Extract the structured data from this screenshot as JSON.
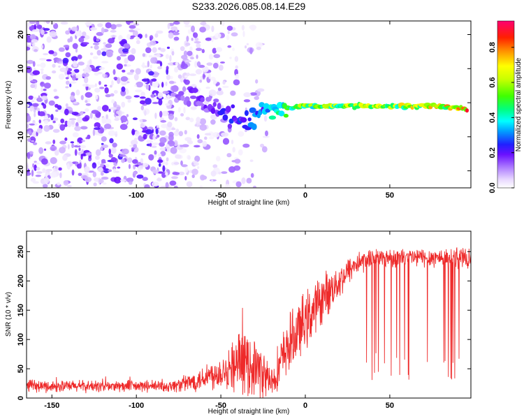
{
  "chart_data": [
    {
      "type": "heatmap",
      "title": "S233.2026.085.08.14.E29",
      "xlabel": "Height of straight line (km)",
      "ylabel": "Frequency (Hz)",
      "xlim": [
        -165,
        98
      ],
      "ylim": [
        -25,
        24
      ],
      "x_ticks": [
        -150,
        -100,
        -50,
        0,
        50
      ],
      "x_tick_labels": [
        "-150",
        "-100",
        "-50",
        "0",
        "50"
      ],
      "y_ticks": [
        20,
        10,
        0,
        -10,
        -20
      ],
      "y_tick_labels": [
        "20",
        "10",
        "0",
        "-10",
        "-20"
      ],
      "colorbar": {
        "label": "Normalized spectral amplitude",
        "range": [
          0,
          0.95
        ],
        "ticks": [
          0.0,
          0.2,
          0.4,
          0.6,
          0.8
        ],
        "tick_labels": [
          "0.0",
          "0.2",
          "0.4",
          "0.6",
          "0.8"
        ]
      },
      "carrier_line": {
        "description": "frequency of strongest spectral component vs height",
        "x": [
          -75,
          -65,
          -55,
          -45,
          -35,
          -25,
          -15,
          0,
          20,
          40,
          60,
          80,
          95
        ],
        "frequency_hz": [
          3,
          1,
          -1,
          -4,
          -5,
          -2,
          -2,
          -1,
          -1,
          -1,
          -1,
          -1,
          -2
        ],
        "amplitude": [
          0.15,
          0.2,
          0.2,
          0.25,
          0.3,
          0.35,
          0.5,
          0.6,
          0.65,
          0.7,
          0.7,
          0.75,
          0.95
        ]
      }
    },
    {
      "type": "line",
      "xlabel": "Height of straight line (km)",
      "ylabel": "SNR (10 * v/v)",
      "xlim": [
        -165,
        98
      ],
      "ylim": [
        0,
        285
      ],
      "x_ticks": [
        -150,
        -100,
        -50,
        0,
        50
      ],
      "x_tick_labels": [
        "-150",
        "-100",
        "-50",
        "0",
        "50"
      ],
      "y_ticks": [
        0,
        50,
        100,
        150,
        200,
        250
      ],
      "y_tick_labels": [
        "0",
        "50",
        "100",
        "150",
        "200",
        "250"
      ],
      "series": [
        {
          "name": "SNR",
          "color": "#ee2a2a",
          "x": [
            -165,
            -140,
            -120,
            -100,
            -80,
            -70,
            -60,
            -50,
            -40,
            -30,
            -25,
            -20,
            -10,
            0,
            10,
            20,
            30,
            40,
            50,
            60,
            70,
            80,
            90,
            98
          ],
          "mean": [
            20,
            20,
            20,
            20,
            20,
            25,
            35,
            45,
            60,
            55,
            40,
            25,
            90,
            130,
            170,
            200,
            230,
            240,
            240,
            240,
            240,
            240,
            240,
            235
          ],
          "spread": [
            12,
            12,
            12,
            12,
            12,
            18,
            25,
            35,
            60,
            60,
            50,
            40,
            60,
            60,
            50,
            35,
            25,
            20,
            20,
            20,
            20,
            20,
            20,
            20
          ]
        }
      ]
    }
  ]
}
